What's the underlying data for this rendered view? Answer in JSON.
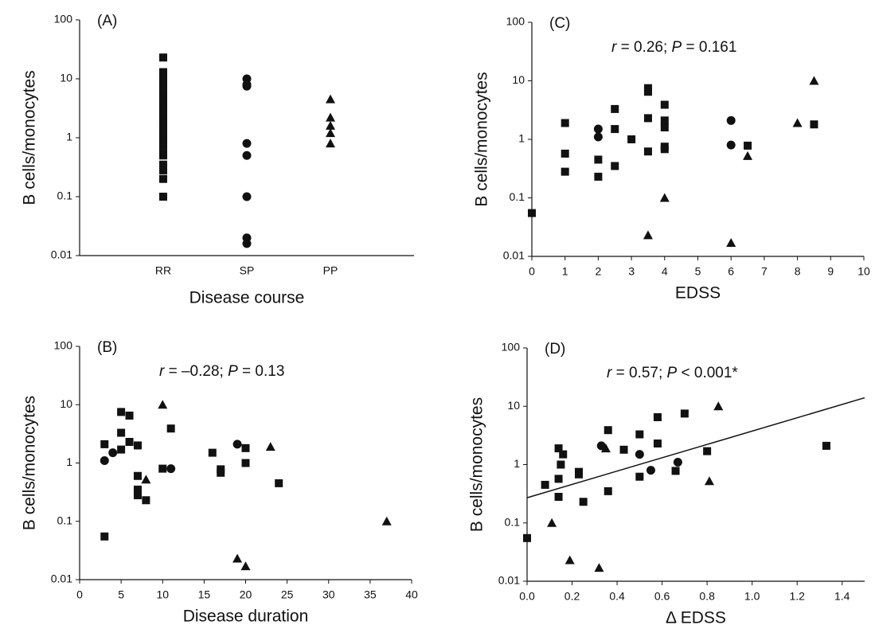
{
  "chart_data": [
    {
      "type": "category-scatter",
      "label": "(A)",
      "xlabel": "Disease course",
      "ylabel": "B cells/monocytes",
      "log_y": true,
      "ylim": [
        0.01,
        100
      ],
      "yticks": [
        0.01,
        0.1,
        1,
        10,
        100
      ],
      "categories": [
        "RR",
        "SP",
        "PP"
      ],
      "markers": [
        "square",
        "circle",
        "triangle"
      ],
      "values": [
        [
          23,
          13,
          10,
          8,
          7,
          6,
          5,
          4.5,
          4,
          3.5,
          3,
          2.7,
          2.4,
          2.1,
          1.9,
          1.7,
          1.5,
          1.3,
          1.2,
          1.1,
          1.0,
          0.9,
          0.8,
          0.7,
          0.6,
          0.5,
          0.35,
          0.28,
          0.2,
          0.1
        ],
        [
          10,
          8,
          7.5,
          0.8,
          0.5,
          0.1,
          0.02,
          0.016
        ],
        [
          4.5,
          2.2,
          1.6,
          1.2,
          0.8
        ]
      ]
    },
    {
      "type": "scatter",
      "label": "(C)",
      "xlabel": "EDSS",
      "ylabel": "B cells/monocytes",
      "annotation": [
        "r",
        " = 0.26; ",
        "P",
        " = 0.161"
      ],
      "log_y": true,
      "ylim": [
        0.01,
        100
      ],
      "yticks": [
        0.01,
        0.1,
        1,
        10,
        100
      ],
      "xlim": [
        0,
        10
      ],
      "xticks": [
        0,
        1,
        2,
        3,
        4,
        5,
        6,
        7,
        8,
        9,
        10
      ],
      "series": [
        {
          "marker": "square",
          "x": [
            0,
            1,
            1,
            1,
            2,
            2,
            2.5,
            2.5,
            2.5,
            3,
            3.5,
            3.5,
            3.5,
            3.5,
            4,
            4,
            4,
            4,
            4,
            6.5,
            8.5
          ],
          "y": [
            0.055,
            1.9,
            0.57,
            0.28,
            0.45,
            0.23,
            3.3,
            1.5,
            0.35,
            1,
            7.5,
            6.5,
            2.3,
            0.62,
            3.9,
            2.1,
            1.6,
            0.75,
            0.68,
            0.78,
            1.8
          ]
        },
        {
          "marker": "circle",
          "x": [
            2,
            2,
            6,
            6
          ],
          "y": [
            1.5,
            1.1,
            2.1,
            0.8
          ]
        },
        {
          "marker": "triangle",
          "x": [
            3.5,
            4,
            6,
            6.5,
            8,
            8.5
          ],
          "y": [
            0.023,
            0.1,
            0.017,
            0.52,
            1.9,
            10
          ]
        }
      ]
    },
    {
      "type": "scatter",
      "label": "(B)",
      "xlabel": "Disease duration",
      "ylabel": "B cells/monocytes",
      "annotation": [
        "r",
        " = –0.28; ",
        "P",
        " = 0.13"
      ],
      "log_y": true,
      "ylim": [
        0.01,
        100
      ],
      "yticks": [
        0.01,
        0.1,
        1,
        10,
        100
      ],
      "xlim": [
        0,
        40
      ],
      "xticks": [
        0,
        5,
        10,
        15,
        20,
        25,
        30,
        35,
        40
      ],
      "series": [
        {
          "marker": "square",
          "x": [
            3,
            3,
            5,
            5,
            5,
            6,
            6,
            7,
            7,
            7,
            7,
            8,
            10,
            11,
            16,
            17,
            17,
            20,
            20,
            24
          ],
          "y": [
            2.1,
            0.055,
            7.5,
            3.3,
            1.7,
            6.5,
            2.3,
            2,
            0.6,
            0.35,
            0.28,
            0.23,
            0.8,
            3.9,
            1.5,
            0.78,
            0.68,
            1.8,
            1,
            0.45
          ]
        },
        {
          "marker": "circle",
          "x": [
            3,
            4,
            11,
            19
          ],
          "y": [
            1.1,
            1.5,
            0.8,
            2.1
          ]
        },
        {
          "marker": "triangle",
          "x": [
            8,
            10,
            19,
            20,
            23,
            37
          ],
          "y": [
            0.52,
            10,
            0.023,
            0.017,
            1.9,
            0.1
          ]
        }
      ]
    },
    {
      "type": "scatter",
      "label": "(D)",
      "xlabel": "Δ EDSS",
      "ylabel": "B cells/monocytes",
      "annotation": [
        "r",
        " = 0.57; ",
        "P",
        " < 0.001*"
      ],
      "log_y": true,
      "ylim": [
        0.01,
        100
      ],
      "yticks": [
        0.01,
        0.1,
        1,
        10,
        100
      ],
      "xlim": [
        0,
        1.5
      ],
      "xticks": [
        {
          "value": 0,
          "label": "0.0"
        },
        0.2,
        0.4,
        0.6,
        0.8,
        {
          "value": 1,
          "label": "1.0"
        },
        1.2,
        1.4
      ],
      "series": [
        {
          "marker": "square",
          "x": [
            0,
            0.08,
            0.14,
            0.14,
            0.14,
            0.15,
            0.16,
            0.23,
            0.23,
            0.25,
            0.36,
            0.36,
            0.43,
            0.5,
            0.5,
            0.58,
            0.58,
            0.66,
            0.7,
            0.8,
            1.33
          ],
          "y": [
            0.055,
            0.45,
            1.9,
            0.57,
            0.28,
            1,
            1.5,
            0.75,
            0.68,
            0.23,
            3.9,
            0.35,
            1.8,
            3.3,
            0.62,
            6.5,
            2.3,
            0.78,
            7.5,
            1.7,
            2.1
          ]
        },
        {
          "marker": "circle",
          "x": [
            0.33,
            0.5,
            0.55,
            0.67
          ],
          "y": [
            2.1,
            1.5,
            0.8,
            1.1
          ]
        },
        {
          "marker": "triangle",
          "x": [
            0.11,
            0.19,
            0.32,
            0.35,
            0.81,
            0.85
          ],
          "y": [
            0.1,
            0.023,
            0.017,
            1.9,
            0.52,
            10
          ]
        }
      ],
      "fit": {
        "x": [
          0,
          1.5
        ],
        "y": [
          0.27,
          14
        ]
      }
    }
  ]
}
